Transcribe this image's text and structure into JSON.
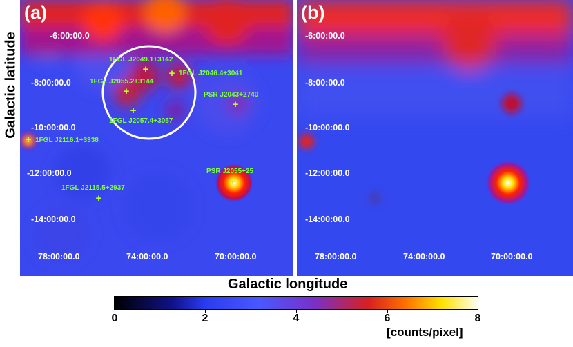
{
  "panel_a": {
    "label": "(a)",
    "lat_ticks": [
      "-6:00:00.0",
      "-8:00:00.0",
      "-10:00:00.0",
      "-12:00:00.0",
      "-14:00:00.0"
    ],
    "lon_ticks": [
      "78:00:00.0",
      "74:00:00.0",
      "70:00:00.0"
    ],
    "sources": [
      "1FGL J2049.1+3142",
      "1FGL J2046.4+3041",
      "1FGL J2055.2+3144",
      "PSR J2043+2740",
      "1FGL J2057.4+3057",
      "1FGL J2116.1+3338",
      "PSR J2055+25",
      "1FGL J2115.5+2937"
    ],
    "circle": "region of interest"
  },
  "panel_b": {
    "label": "(b)",
    "lat_ticks": [
      "-6:00:00.0",
      "-8:00:00.0",
      "-10:00:00.0",
      "-12:00:00.0",
      "-14:00:00.0"
    ],
    "lon_ticks": [
      "78:00:00.0",
      "74:00:00.0",
      "70:00:00.0"
    ]
  },
  "axes": {
    "ylabel": "Galactic latitude",
    "xlabel": "Galactic longitude"
  },
  "colorbar": {
    "ticks": [
      "0",
      "2",
      "4",
      "6",
      "8"
    ],
    "unit": "[counts/pixel]",
    "range": [
      0,
      8
    ]
  }
}
